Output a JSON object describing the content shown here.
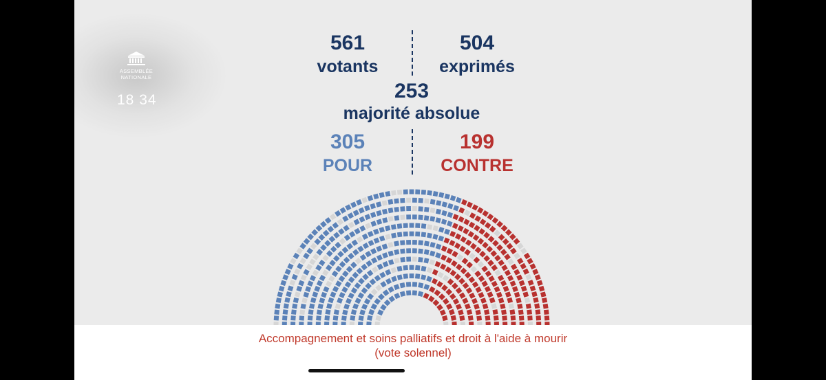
{
  "logo": {
    "line1": "ASSEMBLÉE",
    "line2": "NATIONALE"
  },
  "clock": "18 34",
  "results": {
    "votants": {
      "value": "561",
      "label": "votants"
    },
    "exprimes": {
      "value": "504",
      "label": "exprimés"
    },
    "majorite": {
      "value": "253",
      "label": "majorité absolue"
    },
    "pour": {
      "value": "305",
      "label": "POUR"
    },
    "contre": {
      "value": "199",
      "label": "CONTRE"
    }
  },
  "hemicycle_seats": {
    "pour": 305,
    "contre": 199,
    "abstention": 57,
    "non_votants": 16
  },
  "footer": {
    "title": "Accompagnement et soins palliatifs et droit à l'aide à mourir",
    "subtitle": "(vote solennel)"
  },
  "colors": {
    "pour": "#5b82b8",
    "contre": "#b8312f",
    "neutral": "#d6d6d6",
    "navy": "#1a3561"
  }
}
